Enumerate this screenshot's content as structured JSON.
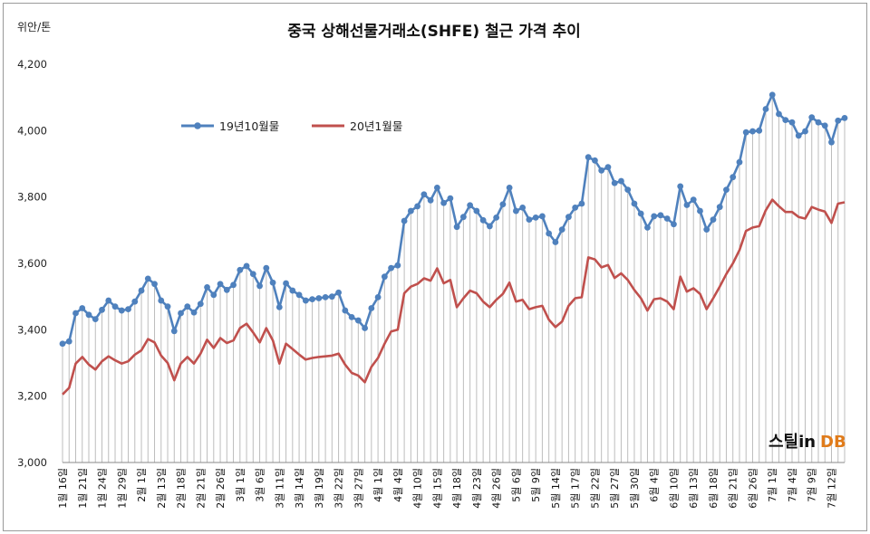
{
  "chart_data": {
    "type": "line",
    "title": "중국 상해선물거래소(SHFE)  철근 가격 추이",
    "unit_label": "위안/톤",
    "ylim": [
      3000,
      4200
    ],
    "yticks": [
      "3,000",
      "3,200",
      "3,400",
      "3,600",
      "3,800",
      "4,000",
      "4,200"
    ],
    "ytick_values": [
      3000,
      3200,
      3400,
      3600,
      3800,
      4000,
      4200
    ],
    "x_labels": [
      "1월 16일",
      "1월 21일",
      "1월 24일",
      "1월 29일",
      "2월 1일",
      "2월 13일",
      "2월 18일",
      "2월 21일",
      "2월 26일",
      "3월 1일",
      "3월 6일",
      "3월 11일",
      "3월 14일",
      "3월 19일",
      "3월 22일",
      "3월 27일",
      "4월 1일",
      "4월 4일",
      "4월 10일",
      "4월 15일",
      "4월 18일",
      "4월 23일",
      "4월 26일",
      "5월 6일",
      "5월 9일",
      "5월 14일",
      "5월 17일",
      "5월 22일",
      "5월 27일",
      "5월 30일",
      "6월 4일",
      "6월 10일",
      "6월 13일",
      "6월 18일",
      "6월 21일",
      "6월 26일",
      "7월 1일",
      "7월 4일",
      "7월 9일",
      "7월 12일"
    ],
    "x_label_every": 3,
    "legend_position": "top-left",
    "series": [
      {
        "name": "19년10월물",
        "color": "#4f81bd",
        "marker": "circle",
        "values": [
          3358,
          3365,
          3450,
          3465,
          3445,
          3432,
          3460,
          3488,
          3470,
          3458,
          3462,
          3485,
          3518,
          3554,
          3538,
          3488,
          3470,
          3396,
          3450,
          3470,
          3452,
          3478,
          3528,
          3505,
          3538,
          3520,
          3535,
          3580,
          3592,
          3568,
          3532,
          3586,
          3542,
          3468,
          3540,
          3518,
          3505,
          3488,
          3492,
          3495,
          3498,
          3500,
          3512,
          3458,
          3438,
          3428,
          3405,
          3465,
          3498,
          3560,
          3586,
          3594,
          3728,
          3758,
          3772,
          3808,
          3790,
          3828,
          3782,
          3796,
          3710,
          3740,
          3775,
          3758,
          3730,
          3712,
          3738,
          3778,
          3828,
          3758,
          3768,
          3732,
          3738,
          3742,
          3690,
          3664,
          3702,
          3740,
          3768,
          3780,
          3920,
          3910,
          3880,
          3890,
          3842,
          3848,
          3822,
          3780,
          3750,
          3708,
          3742,
          3745,
          3735,
          3718,
          3832,
          3776,
          3792,
          3758,
          3702,
          3732,
          3770,
          3822,
          3860,
          3905,
          3995,
          3998,
          4000,
          4065,
          4108,
          4050,
          4032,
          4025,
          3985,
          3998,
          4040,
          4025,
          4015,
          3965,
          4030,
          4038
        ]
      },
      {
        "name": "20년1월물",
        "color": "#c0504d",
        "marker": "none",
        "values": [
          3205,
          3225,
          3298,
          3318,
          3295,
          3280,
          3305,
          3320,
          3308,
          3298,
          3305,
          3325,
          3338,
          3372,
          3362,
          3322,
          3300,
          3248,
          3298,
          3318,
          3298,
          3328,
          3370,
          3345,
          3375,
          3360,
          3368,
          3405,
          3418,
          3392,
          3362,
          3405,
          3368,
          3298,
          3358,
          3342,
          3325,
          3310,
          3315,
          3318,
          3320,
          3322,
          3328,
          3295,
          3270,
          3262,
          3242,
          3288,
          3315,
          3358,
          3395,
          3400,
          3510,
          3530,
          3538,
          3555,
          3548,
          3585,
          3540,
          3550,
          3468,
          3495,
          3518,
          3510,
          3485,
          3468,
          3490,
          3508,
          3542,
          3485,
          3490,
          3462,
          3468,
          3472,
          3430,
          3408,
          3425,
          3472,
          3495,
          3498,
          3618,
          3612,
          3588,
          3595,
          3556,
          3570,
          3550,
          3520,
          3495,
          3458,
          3492,
          3495,
          3485,
          3462,
          3560,
          3515,
          3525,
          3508,
          3462,
          3495,
          3530,
          3568,
          3600,
          3640,
          3698,
          3708,
          3712,
          3760,
          3792,
          3772,
          3755,
          3755,
          3740,
          3735,
          3770,
          3762,
          3756,
          3722,
          3780,
          3784
        ]
      }
    ],
    "grid": false,
    "drop_lines": true
  },
  "logo": {
    "text_main": "스틸in",
    "text_db": "DB"
  }
}
